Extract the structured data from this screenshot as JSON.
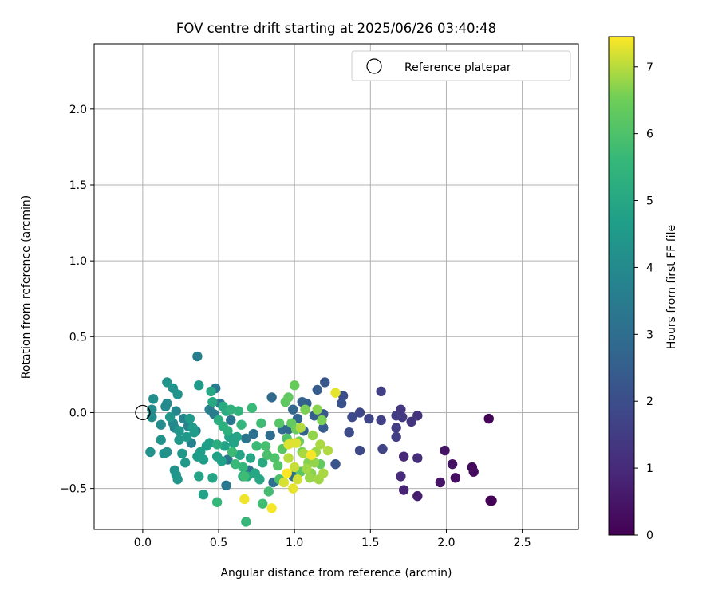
{
  "chart_data": {
    "type": "scatter",
    "title": "FOV centre drift starting at 2025/06/26 03:40:48",
    "xlabel": "Angular distance from reference (arcmin)",
    "ylabel": "Rotation from reference (arcmin)",
    "xlim": [
      -0.32,
      2.87
    ],
    "ylim": [
      -0.77,
      2.43
    ],
    "xticks": [
      0.0,
      0.5,
      1.0,
      1.5,
      2.0,
      2.5
    ],
    "xtick_labels": [
      "0.0",
      "0.5",
      "1.0",
      "1.5",
      "2.0",
      "2.5"
    ],
    "yticks": [
      -0.5,
      0.0,
      0.5,
      1.0,
      1.5,
      2.0
    ],
    "ytick_labels": [
      "−0.5",
      "0.0",
      "0.5",
      "1.0",
      "1.5",
      "2.0"
    ],
    "grid": true,
    "legend": {
      "placement": "upper-right",
      "entries": [
        "Reference platepar"
      ]
    },
    "reference_point": {
      "x": 0.0,
      "y": 0.0
    },
    "colorbar": {
      "label": "Hours from first FF file",
      "colormap": "viridis",
      "range": [
        0,
        7.45
      ],
      "ticks": [
        0,
        1,
        2,
        3,
        4,
        5,
        6,
        7
      ],
      "tick_labels": [
        "0",
        "1",
        "2",
        "3",
        "4",
        "5",
        "6",
        "7"
      ]
    },
    "points": [
      {
        "x": 2.3,
        "y": -0.58,
        "c": 0.0
      },
      {
        "x": 2.29,
        "y": -0.58,
        "c": 0.05
      },
      {
        "x": 2.28,
        "y": -0.04,
        "c": 0.1
      },
      {
        "x": 2.17,
        "y": -0.36,
        "c": 0.2
      },
      {
        "x": 2.18,
        "y": -0.39,
        "c": 0.25
      },
      {
        "x": 2.06,
        "y": -0.43,
        "c": 0.3
      },
      {
        "x": 2.04,
        "y": -0.34,
        "c": 0.4
      },
      {
        "x": 1.99,
        "y": -0.25,
        "c": 0.45
      },
      {
        "x": 1.96,
        "y": -0.46,
        "c": 0.5
      },
      {
        "x": 1.81,
        "y": -0.55,
        "c": 0.7
      },
      {
        "x": 1.72,
        "y": -0.51,
        "c": 0.8
      },
      {
        "x": 1.72,
        "y": -0.29,
        "c": 0.9
      },
      {
        "x": 1.7,
        "y": -0.42,
        "c": 1.0
      },
      {
        "x": 1.81,
        "y": -0.3,
        "c": 1.1
      },
      {
        "x": 1.81,
        "y": -0.02,
        "c": 1.2
      },
      {
        "x": 1.77,
        "y": -0.06,
        "c": 1.3
      },
      {
        "x": 1.7,
        "y": 0.02,
        "c": 1.35
      },
      {
        "x": 1.71,
        "y": -0.03,
        "c": 1.4
      },
      {
        "x": 1.67,
        "y": -0.02,
        "c": 1.5
      },
      {
        "x": 1.67,
        "y": -0.1,
        "c": 1.5
      },
      {
        "x": 1.67,
        "y": -0.16,
        "c": 1.55
      },
      {
        "x": 1.57,
        "y": 0.14,
        "c": 1.6
      },
      {
        "x": 1.57,
        "y": -0.05,
        "c": 1.65
      },
      {
        "x": 1.58,
        "y": -0.24,
        "c": 1.7
      },
      {
        "x": 1.49,
        "y": -0.04,
        "c": 1.75
      },
      {
        "x": 1.43,
        "y": 0.0,
        "c": 1.8
      },
      {
        "x": 1.43,
        "y": -0.25,
        "c": 1.85
      },
      {
        "x": 1.38,
        "y": -0.03,
        "c": 1.9
      },
      {
        "x": 1.36,
        "y": -0.13,
        "c": 1.95
      },
      {
        "x": 1.32,
        "y": 0.11,
        "c": 2.0
      },
      {
        "x": 1.31,
        "y": 0.06,
        "c": 2.1
      },
      {
        "x": 1.27,
        "y": -0.34,
        "c": 2.2
      },
      {
        "x": 1.2,
        "y": 0.2,
        "c": 2.3
      },
      {
        "x": 1.19,
        "y": -0.01,
        "c": 2.35
      },
      {
        "x": 1.19,
        "y": -0.1,
        "c": 2.4
      },
      {
        "x": 1.15,
        "y": 0.15,
        "c": 2.45
      },
      {
        "x": 1.13,
        "y": -0.02,
        "c": 2.5
      },
      {
        "x": 1.08,
        "y": 0.06,
        "c": 2.55
      },
      {
        "x": 1.05,
        "y": 0.07,
        "c": 2.6
      },
      {
        "x": 1.06,
        "y": -0.12,
        "c": 2.65
      },
      {
        "x": 1.02,
        "y": -0.04,
        "c": 2.7
      },
      {
        "x": 0.99,
        "y": 0.02,
        "c": 2.75
      },
      {
        "x": 0.96,
        "y": -0.11,
        "c": 2.8
      },
      {
        "x": 0.92,
        "y": -0.11,
        "c": 2.85
      },
      {
        "x": 0.85,
        "y": 0.1,
        "c": 2.9
      },
      {
        "x": 0.84,
        "y": -0.15,
        "c": 2.95
      },
      {
        "x": 0.86,
        "y": -0.46,
        "c": 3.0
      },
      {
        "x": 0.99,
        "y": -0.42,
        "c": 3.05
      },
      {
        "x": 0.73,
        "y": -0.14,
        "c": 3.1
      },
      {
        "x": 0.7,
        "y": -0.38,
        "c": 3.15
      },
      {
        "x": 0.68,
        "y": -0.17,
        "c": 3.2
      },
      {
        "x": 0.58,
        "y": -0.05,
        "c": 3.25
      },
      {
        "x": 0.56,
        "y": -0.31,
        "c": 3.3
      },
      {
        "x": 0.55,
        "y": -0.48,
        "c": 3.35
      },
      {
        "x": 0.51,
        "y": 0.06,
        "c": 3.4
      },
      {
        "x": 0.48,
        "y": 0.16,
        "c": 3.45
      },
      {
        "x": 0.47,
        "y": -0.01,
        "c": 3.5
      },
      {
        "x": 0.44,
        "y": 0.02,
        "c": 3.55
      },
      {
        "x": 0.36,
        "y": 0.37,
        "c": 3.6
      },
      {
        "x": 0.35,
        "y": -0.12,
        "c": 3.65
      },
      {
        "x": 0.32,
        "y": -0.2,
        "c": 3.7
      },
      {
        "x": 0.3,
        "y": -0.09,
        "c": 3.75
      },
      {
        "x": 0.27,
        "y": -0.04,
        "c": 3.8
      },
      {
        "x": 0.22,
        "y": 0.01,
        "c": 3.85
      },
      {
        "x": 0.21,
        "y": -0.1,
        "c": 3.9
      },
      {
        "x": 0.2,
        "y": -0.07,
        "c": 3.95
      },
      {
        "x": 0.16,
        "y": 0.06,
        "c": 4.0
      },
      {
        "x": 0.15,
        "y": 0.04,
        "c": 4.0
      },
      {
        "x": 0.12,
        "y": -0.08,
        "c": 4.05
      },
      {
        "x": 0.06,
        "y": 0.02,
        "c": 4.1
      },
      {
        "x": 0.06,
        "y": -0.03,
        "c": 4.1
      },
      {
        "x": 0.07,
        "y": 0.09,
        "c": 4.15
      },
      {
        "x": 0.05,
        "y": -0.26,
        "c": 4.2
      },
      {
        "x": 0.14,
        "y": -0.27,
        "c": 4.2
      },
      {
        "x": 0.16,
        "y": -0.26,
        "c": 4.25
      },
      {
        "x": 0.12,
        "y": -0.18,
        "c": 4.3
      },
      {
        "x": 0.16,
        "y": 0.2,
        "c": 4.3
      },
      {
        "x": 0.2,
        "y": 0.16,
        "c": 4.35
      },
      {
        "x": 0.23,
        "y": 0.12,
        "c": 4.35
      },
      {
        "x": 0.18,
        "y": -0.03,
        "c": 4.4
      },
      {
        "x": 0.24,
        "y": -0.12,
        "c": 4.4
      },
      {
        "x": 0.24,
        "y": -0.18,
        "c": 4.45
      },
      {
        "x": 0.26,
        "y": -0.27,
        "c": 4.5
      },
      {
        "x": 0.29,
        "y": -0.16,
        "c": 4.5
      },
      {
        "x": 0.31,
        "y": -0.04,
        "c": 4.55
      },
      {
        "x": 0.33,
        "y": -0.1,
        "c": 4.55
      },
      {
        "x": 0.34,
        "y": -0.13,
        "c": 4.6
      },
      {
        "x": 0.36,
        "y": -0.29,
        "c": 4.6
      },
      {
        "x": 0.38,
        "y": -0.26,
        "c": 4.65
      },
      {
        "x": 0.4,
        "y": -0.31,
        "c": 4.65
      },
      {
        "x": 0.42,
        "y": -0.22,
        "c": 4.7
      },
      {
        "x": 0.44,
        "y": -0.2,
        "c": 4.7
      },
      {
        "x": 0.49,
        "y": -0.29,
        "c": 4.75
      },
      {
        "x": 0.52,
        "y": -0.32,
        "c": 4.75
      },
      {
        "x": 0.54,
        "y": -0.22,
        "c": 4.8
      },
      {
        "x": 0.57,
        "y": -0.16,
        "c": 4.8
      },
      {
        "x": 0.6,
        "y": -0.2,
        "c": 4.85
      },
      {
        "x": 0.62,
        "y": -0.16,
        "c": 4.85
      },
      {
        "x": 0.64,
        "y": -0.28,
        "c": 4.9
      },
      {
        "x": 0.66,
        "y": -0.42,
        "c": 4.9
      },
      {
        "x": 0.69,
        "y": -0.42,
        "c": 4.95
      },
      {
        "x": 0.71,
        "y": -0.3,
        "c": 4.95
      },
      {
        "x": 0.74,
        "y": -0.4,
        "c": 5.0
      },
      {
        "x": 0.77,
        "y": -0.44,
        "c": 5.0
      },
      {
        "x": 0.79,
        "y": -0.33,
        "c": 5.05
      },
      {
        "x": 0.21,
        "y": -0.38,
        "c": 4.3
      },
      {
        "x": 0.22,
        "y": -0.41,
        "c": 4.35
      },
      {
        "x": 0.23,
        "y": -0.44,
        "c": 4.4
      },
      {
        "x": 0.28,
        "y": -0.33,
        "c": 4.5
      },
      {
        "x": 0.37,
        "y": 0.18,
        "c": 4.55
      },
      {
        "x": 0.4,
        "y": -0.54,
        "c": 4.8
      },
      {
        "x": 0.37,
        "y": -0.42,
        "c": 4.85
      },
      {
        "x": 0.46,
        "y": -0.43,
        "c": 4.9
      },
      {
        "x": 0.45,
        "y": 0.14,
        "c": 5.0
      },
      {
        "x": 0.46,
        "y": 0.07,
        "c": 5.05
      },
      {
        "x": 0.53,
        "y": 0.04,
        "c": 5.1
      },
      {
        "x": 0.55,
        "y": 0.01,
        "c": 5.15
      },
      {
        "x": 0.49,
        "y": -0.21,
        "c": 5.2
      },
      {
        "x": 0.5,
        "y": -0.05,
        "c": 5.25
      },
      {
        "x": 0.53,
        "y": -0.09,
        "c": 5.3
      },
      {
        "x": 0.56,
        "y": -0.12,
        "c": 5.35
      },
      {
        "x": 0.58,
        "y": 0.02,
        "c": 5.4
      },
      {
        "x": 0.63,
        "y": 0.01,
        "c": 5.45
      },
      {
        "x": 0.65,
        "y": -0.08,
        "c": 5.5
      },
      {
        "x": 0.66,
        "y": -0.36,
        "c": 5.55
      },
      {
        "x": 0.68,
        "y": -0.72,
        "c": 5.6
      },
      {
        "x": 0.72,
        "y": 0.03,
        "c": 5.65
      },
      {
        "x": 0.75,
        "y": -0.22,
        "c": 5.7
      },
      {
        "x": 0.78,
        "y": -0.07,
        "c": 5.75
      },
      {
        "x": 0.79,
        "y": -0.6,
        "c": 5.8
      },
      {
        "x": 0.83,
        "y": -0.52,
        "c": 5.85
      },
      {
        "x": 0.81,
        "y": -0.22,
        "c": 5.9
      },
      {
        "x": 0.82,
        "y": -0.28,
        "c": 5.95
      },
      {
        "x": 0.87,
        "y": -0.3,
        "c": 6.0
      },
      {
        "x": 0.49,
        "y": -0.59,
        "c": 5.6
      },
      {
        "x": 0.61,
        "y": -0.34,
        "c": 5.65
      },
      {
        "x": 0.59,
        "y": -0.26,
        "c": 5.7
      },
      {
        "x": 0.67,
        "y": -0.42,
        "c": 5.75
      },
      {
        "x": 0.89,
        "y": -0.35,
        "c": 6.1
      },
      {
        "x": 0.9,
        "y": -0.07,
        "c": 6.15
      },
      {
        "x": 0.92,
        "y": -0.24,
        "c": 6.2
      },
      {
        "x": 0.94,
        "y": 0.07,
        "c": 6.25
      },
      {
        "x": 0.96,
        "y": 0.1,
        "c": 6.3
      },
      {
        "x": 0.98,
        "y": -0.07,
        "c": 6.35
      },
      {
        "x": 1.0,
        "y": 0.18,
        "c": 6.4
      },
      {
        "x": 1.01,
        "y": -0.11,
        "c": 6.45
      },
      {
        "x": 1.03,
        "y": -0.19,
        "c": 6.5
      },
      {
        "x": 1.05,
        "y": -0.26,
        "c": 6.55
      },
      {
        "x": 1.07,
        "y": 0.02,
        "c": 6.6
      },
      {
        "x": 1.09,
        "y": -0.33,
        "c": 6.65
      },
      {
        "x": 1.11,
        "y": -0.4,
        "c": 6.7
      },
      {
        "x": 1.12,
        "y": -0.15,
        "c": 6.75
      },
      {
        "x": 1.14,
        "y": -0.26,
        "c": 6.8
      },
      {
        "x": 1.16,
        "y": -0.44,
        "c": 6.85
      },
      {
        "x": 1.17,
        "y": -0.21,
        "c": 6.9
      },
      {
        "x": 1.19,
        "y": -0.4,
        "c": 6.9
      },
      {
        "x": 1.22,
        "y": -0.25,
        "c": 6.95
      },
      {
        "x": 1.18,
        "y": -0.05,
        "c": 6.6
      },
      {
        "x": 1.15,
        "y": 0.02,
        "c": 6.7
      },
      {
        "x": 1.13,
        "y": -0.33,
        "c": 6.75
      },
      {
        "x": 1.1,
        "y": -0.43,
        "c": 6.8
      },
      {
        "x": 1.08,
        "y": -0.37,
        "c": 6.85
      },
      {
        "x": 1.06,
        "y": -0.27,
        "c": 6.9
      },
      {
        "x": 1.04,
        "y": -0.1,
        "c": 6.95
      },
      {
        "x": 0.96,
        "y": -0.3,
        "c": 7.0
      },
      {
        "x": 0.98,
        "y": -0.2,
        "c": 7.05
      },
      {
        "x": 1.0,
        "y": -0.36,
        "c": 7.1
      },
      {
        "x": 1.02,
        "y": -0.44,
        "c": 7.15
      },
      {
        "x": 0.93,
        "y": -0.46,
        "c": 7.2
      },
      {
        "x": 0.96,
        "y": -0.21,
        "c": 7.25
      },
      {
        "x": 1.01,
        "y": -0.2,
        "c": 7.25
      },
      {
        "x": 0.99,
        "y": -0.5,
        "c": 7.3
      },
      {
        "x": 1.27,
        "y": 0.13,
        "c": 7.3
      },
      {
        "x": 0.67,
        "y": -0.57,
        "c": 7.35
      },
      {
        "x": 0.85,
        "y": -0.63,
        "c": 7.4
      },
      {
        "x": 1.11,
        "y": -0.28,
        "c": 7.4
      },
      {
        "x": 0.95,
        "y": -0.4,
        "c": 7.45
      },
      {
        "x": 0.95,
        "y": -0.17,
        "c": 6.0
      },
      {
        "x": 0.9,
        "y": -0.44,
        "c": 5.95
      },
      {
        "x": 1.04,
        "y": -0.39,
        "c": 6.2
      },
      {
        "x": 1.17,
        "y": -0.34,
        "c": 6.3
      }
    ]
  }
}
